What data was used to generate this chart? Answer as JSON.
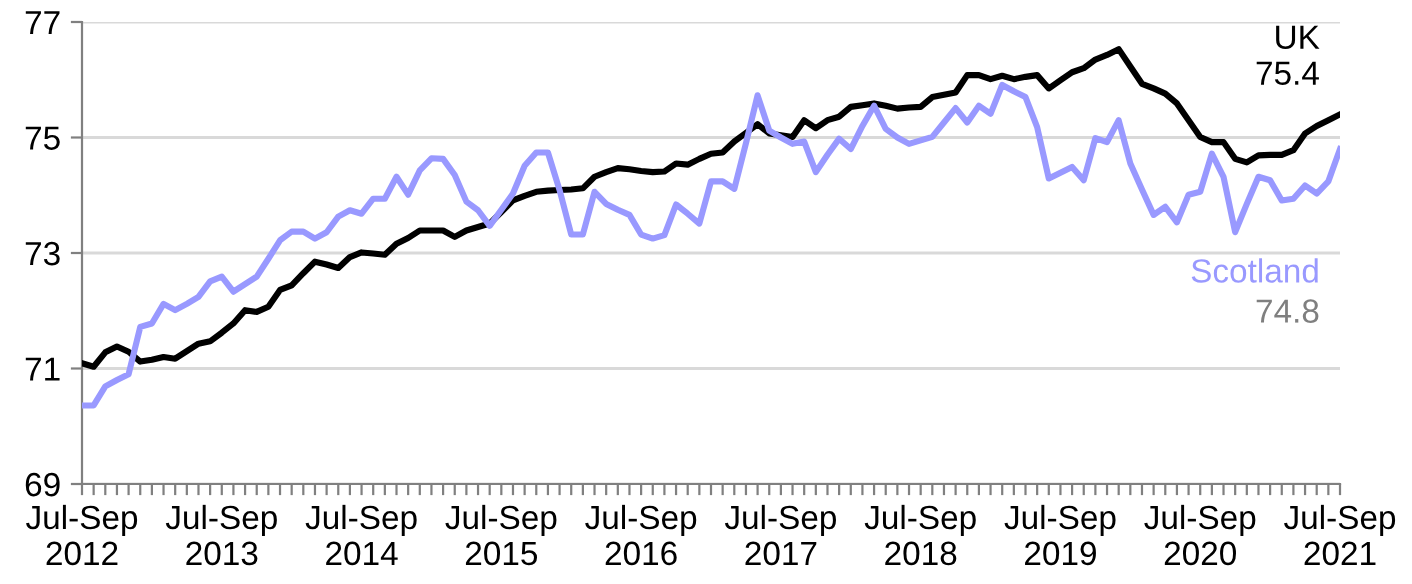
{
  "chart_data": {
    "type": "line",
    "ylim": [
      69,
      77
    ],
    "yticks": [
      69,
      71,
      73,
      75,
      77
    ],
    "categories": [
      "Jul-Sep\n2012",
      null,
      null,
      null,
      null,
      null,
      null,
      null,
      null,
      null,
      null,
      null,
      "Jul-Sep\n2013",
      null,
      null,
      null,
      null,
      null,
      null,
      null,
      null,
      null,
      null,
      null,
      "Jul-Sep\n2014",
      null,
      null,
      null,
      null,
      null,
      null,
      null,
      null,
      null,
      null,
      null,
      "Jul-Sep\n2015",
      null,
      null,
      null,
      null,
      null,
      null,
      null,
      null,
      null,
      null,
      null,
      "Jul-Sep\n2016",
      null,
      null,
      null,
      null,
      null,
      null,
      null,
      null,
      null,
      null,
      null,
      "Jul-Sep\n2017",
      null,
      null,
      null,
      null,
      null,
      null,
      null,
      null,
      null,
      null,
      null,
      "Jul-Sep\n2018",
      null,
      null,
      null,
      null,
      null,
      null,
      null,
      null,
      null,
      null,
      null,
      "Jul-Sep\n2019",
      null,
      null,
      null,
      null,
      null,
      null,
      null,
      null,
      null,
      null,
      null,
      "Jul-Sep\n2020",
      null,
      null,
      null,
      null,
      null,
      null,
      null,
      null,
      null,
      null,
      null,
      "Jul-Sep\n2021"
    ],
    "grid": "y",
    "legend": false,
    "marker": "none",
    "line_style": "solid",
    "series": [
      {
        "name": "UK",
        "color": "#000000",
        "values": [
          71.09,
          71.03,
          71.28,
          71.38,
          71.29,
          71.12,
          71.15,
          71.2,
          71.17,
          71.3,
          71.43,
          71.47,
          71.62,
          71.78,
          72.01,
          71.98,
          72.07,
          72.36,
          72.44,
          72.65,
          72.85,
          72.8,
          72.74,
          72.93,
          73.01,
          72.99,
          72.97,
          73.16,
          73.26,
          73.39,
          73.39,
          73.39,
          73.28,
          73.39,
          73.45,
          73.51,
          73.71,
          73.91,
          73.99,
          74.06,
          74.08,
          74.09,
          74.1,
          74.12,
          74.32,
          74.4,
          74.47,
          74.45,
          74.42,
          74.4,
          74.41,
          74.55,
          74.53,
          74.63,
          74.72,
          74.74,
          74.93,
          75.08,
          75.23,
          75.07,
          75.04,
          75.01,
          75.3,
          75.16,
          75.3,
          75.36,
          75.53,
          75.56,
          75.59,
          75.55,
          75.5,
          75.52,
          75.53,
          75.7,
          75.74,
          75.78,
          76.08,
          76.08,
          76.01,
          76.07,
          76.01,
          76.05,
          76.08,
          75.85,
          75.99,
          76.13,
          76.2,
          76.35,
          76.43,
          76.53,
          76.23,
          75.93,
          75.85,
          75.76,
          75.59,
          75.3,
          75.01,
          74.92,
          74.92,
          74.63,
          74.57,
          74.69,
          74.7,
          74.7,
          74.78,
          75.07,
          75.2,
          75.3,
          75.4
        ]
      },
      {
        "name": "Scotland",
        "color": "#9999ff",
        "values": [
          70.36,
          70.36,
          70.69,
          70.8,
          70.9,
          71.72,
          71.78,
          72.12,
          72.01,
          72.12,
          72.24,
          72.51,
          72.59,
          72.33,
          72.46,
          72.59,
          72.9,
          73.22,
          73.37,
          73.37,
          73.25,
          73.36,
          73.63,
          73.74,
          73.68,
          73.94,
          73.94,
          74.32,
          74.01,
          74.43,
          74.64,
          74.63,
          74.35,
          73.89,
          73.74,
          73.47,
          73.75,
          74.03,
          74.51,
          74.74,
          74.74,
          74.09,
          73.32,
          73.32,
          74.06,
          73.85,
          73.75,
          73.66,
          73.32,
          73.25,
          73.31,
          73.84,
          73.68,
          73.51,
          74.24,
          74.24,
          74.11,
          74.9,
          75.73,
          75.12,
          75.0,
          74.89,
          74.93,
          74.4,
          74.7,
          74.98,
          74.8,
          75.2,
          75.55,
          75.15,
          75.0,
          74.89,
          74.95,
          75.01,
          75.26,
          75.51,
          75.26,
          75.55,
          75.41,
          75.91,
          75.8,
          75.7,
          75.18,
          74.29,
          74.39,
          74.49,
          74.26,
          74.99,
          74.92,
          75.3,
          74.55,
          74.1,
          73.66,
          73.8,
          73.53,
          74.01,
          74.06,
          74.72,
          74.32,
          73.36,
          73.85,
          74.32,
          74.26,
          73.91,
          73.94,
          74.17,
          74.03,
          74.24,
          74.8
        ]
      }
    ],
    "annotations": [
      "75.4",
      "74.8"
    ]
  }
}
